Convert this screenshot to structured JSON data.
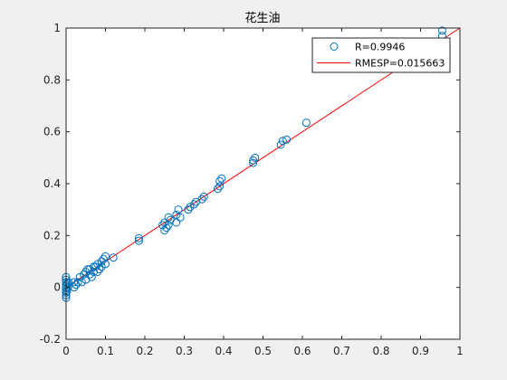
{
  "colors": {
    "background": "#f0f0f0",
    "axes": "#ffffff",
    "axis_line": "#262626",
    "points": "#0072bd",
    "fit_line": "#ff0000"
  },
  "chart_data": {
    "type": "scatter",
    "title": "花生油",
    "xlabel": "",
    "ylabel": "",
    "xlim": [
      0,
      1
    ],
    "ylim": [
      -0.2,
      1
    ],
    "x_ticks": [
      "0",
      "0.1",
      "0.2",
      "0.3",
      "0.4",
      "0.5",
      "0.6",
      "0.7",
      "0.8",
      "0.9",
      "1"
    ],
    "y_ticks": [
      "-0.2",
      "0",
      "0.2",
      "0.4",
      "0.6",
      "0.8",
      "1"
    ],
    "grid": false,
    "legend_position": "top-right",
    "series": [
      {
        "name": "R=0.9946",
        "marker": "circle-open",
        "points": [
          [
            0.0,
            -0.04
          ],
          [
            0.0,
            -0.03
          ],
          [
            0.0,
            -0.02
          ],
          [
            0.0,
            -0.01
          ],
          [
            0.0,
            0.0
          ],
          [
            0.0,
            0.01
          ],
          [
            0.0,
            0.02
          ],
          [
            0.0,
            0.03
          ],
          [
            0.0,
            0.04
          ],
          [
            0.002,
            -0.015
          ],
          [
            0.003,
            0.015
          ],
          [
            0.005,
            0.0
          ],
          [
            0.006,
            0.02
          ],
          [
            0.02,
            0.0
          ],
          [
            0.02,
            0.02
          ],
          [
            0.025,
            0.01
          ],
          [
            0.03,
            0.02
          ],
          [
            0.035,
            0.04
          ],
          [
            0.04,
            0.02
          ],
          [
            0.045,
            0.05
          ],
          [
            0.05,
            0.06
          ],
          [
            0.05,
            0.03
          ],
          [
            0.055,
            0.07
          ],
          [
            0.06,
            0.07
          ],
          [
            0.06,
            0.05
          ],
          [
            0.065,
            0.04
          ],
          [
            0.07,
            0.06
          ],
          [
            0.07,
            0.08
          ],
          [
            0.075,
            0.08
          ],
          [
            0.08,
            0.09
          ],
          [
            0.08,
            0.06
          ],
          [
            0.085,
            0.07
          ],
          [
            0.09,
            0.1
          ],
          [
            0.09,
            0.08
          ],
          [
            0.095,
            0.11
          ],
          [
            0.1,
            0.12
          ],
          [
            0.1,
            0.09
          ],
          [
            0.12,
            0.115
          ],
          [
            0.185,
            0.18
          ],
          [
            0.185,
            0.19
          ],
          [
            0.245,
            0.24
          ],
          [
            0.25,
            0.22
          ],
          [
            0.25,
            0.25
          ],
          [
            0.255,
            0.23
          ],
          [
            0.26,
            0.24
          ],
          [
            0.26,
            0.27
          ],
          [
            0.265,
            0.26
          ],
          [
            0.28,
            0.25
          ],
          [
            0.28,
            0.28
          ],
          [
            0.285,
            0.3
          ],
          [
            0.29,
            0.27
          ],
          [
            0.31,
            0.3
          ],
          [
            0.315,
            0.31
          ],
          [
            0.325,
            0.32
          ],
          [
            0.33,
            0.33
          ],
          [
            0.345,
            0.34
          ],
          [
            0.35,
            0.35
          ],
          [
            0.385,
            0.38
          ],
          [
            0.39,
            0.39
          ],
          [
            0.39,
            0.41
          ],
          [
            0.395,
            0.42
          ],
          [
            0.475,
            0.48
          ],
          [
            0.475,
            0.49
          ],
          [
            0.48,
            0.5
          ],
          [
            0.545,
            0.55
          ],
          [
            0.55,
            0.565
          ],
          [
            0.56,
            0.57
          ],
          [
            0.61,
            0.635
          ],
          [
            0.955,
            0.97
          ],
          [
            0.955,
            0.99
          ]
        ]
      },
      {
        "name": "RMESP=0.015663",
        "line": "solid",
        "fit": [
          [
            0,
            0.0
          ],
          [
            1,
            1.0
          ]
        ]
      }
    ]
  }
}
